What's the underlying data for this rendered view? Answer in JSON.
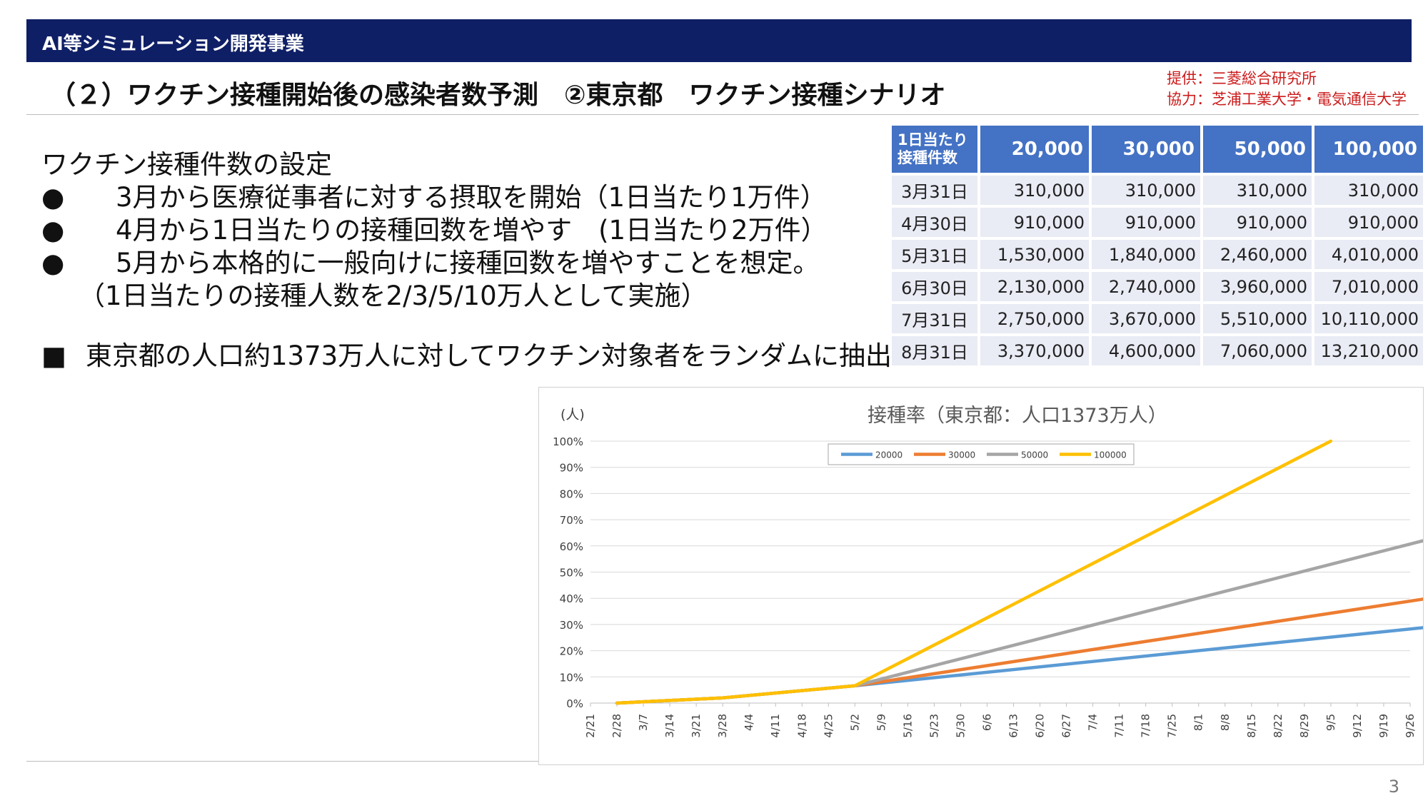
{
  "header": {
    "bar_label": "AI等シミュレーション開発事業"
  },
  "title": "（２）ワクチン接種開始後の感染者数予測　②東京都　ワクチン接種シナリオ",
  "credits": {
    "provider": "提供：三菱総合研究所",
    "cooperation": "協力：芝浦工業大学・電気通信大学"
  },
  "body": {
    "heading": "ワクチン接種件数の設定",
    "bullet_symbol": "●",
    "bullets": [
      "3月から医療従事者に対する摂取を開始（1日当たり1万件）",
      "4月から1日当たりの接種回数を増やす　(1日当たり2万件）",
      "5月から本格的に一般向けに接種回数を増やすことを想定。"
    ],
    "note": "（1日当たりの接種人数を2/3/5/10万人として実施）",
    "square_symbol": "■",
    "square_text": "東京都の人口約1373万人に対してワクチン対象者をランダムに抽出"
  },
  "table": {
    "corner_label": [
      "1日当たり",
      "接種件数"
    ],
    "headers": [
      "20,000",
      "30,000",
      "50,000",
      "100,000"
    ],
    "rows": [
      {
        "date": "3月31日",
        "values": [
          "310,000",
          "310,000",
          "310,000",
          "310,000"
        ]
      },
      {
        "date": "4月30日",
        "values": [
          "910,000",
          "910,000",
          "910,000",
          "910,000"
        ]
      },
      {
        "date": "5月31日",
        "values": [
          "1,530,000",
          "1,840,000",
          "2,460,000",
          "4,010,000"
        ]
      },
      {
        "date": "6月30日",
        "values": [
          "2,130,000",
          "2,740,000",
          "3,960,000",
          "7,010,000"
        ]
      },
      {
        "date": "7月31日",
        "values": [
          "2,750,000",
          "3,670,000",
          "5,510,000",
          "10,110,000"
        ]
      },
      {
        "date": "8月31日",
        "values": [
          "3,370,000",
          "4,600,000",
          "7,060,000",
          "13,210,000"
        ]
      }
    ]
  },
  "chart_data": {
    "type": "line",
    "title": "接種率（東京都：人口1373万人）",
    "ylabel": "(人)",
    "xlabel": "",
    "ylim": [
      0,
      100
    ],
    "grid": true,
    "legend_position": "top-center",
    "x": [
      "2/21",
      "2/28",
      "3/7",
      "3/14",
      "3/21",
      "3/28",
      "4/4",
      "4/11",
      "4/18",
      "4/25",
      "5/2",
      "5/9",
      "5/16",
      "5/23",
      "5/30",
      "6/6",
      "6/13",
      "6/20",
      "6/27",
      "7/4",
      "7/11",
      "7/18",
      "7/25",
      "8/1",
      "8/8",
      "8/15",
      "8/22",
      "8/29",
      "9/5",
      "9/12",
      "9/19",
      "9/26"
    ],
    "yticks": [
      "0%",
      "10%",
      "20%",
      "30%",
      "40%",
      "50%",
      "60%",
      "70%",
      "80%",
      "90%",
      "100%"
    ],
    "series": [
      {
        "name": "20000",
        "color": "#5b9bd5",
        "points": [
          [
            1,
            0
          ],
          [
            5,
            2
          ],
          [
            10,
            6.6
          ],
          [
            31.7,
            29
          ]
        ]
      },
      {
        "name": "30000",
        "color": "#ed7d31",
        "points": [
          [
            1,
            0
          ],
          [
            5,
            2
          ],
          [
            10,
            6.6
          ],
          [
            31.7,
            40
          ]
        ]
      },
      {
        "name": "50000",
        "color": "#a5a5a5",
        "points": [
          [
            1,
            0
          ],
          [
            5,
            2
          ],
          [
            10,
            6.6
          ],
          [
            31.7,
            62.5
          ]
        ]
      },
      {
        "name": "100000",
        "color": "#ffc000",
        "points": [
          [
            1,
            0
          ],
          [
            5,
            2
          ],
          [
            10,
            6.6
          ],
          [
            28,
            100
          ]
        ]
      }
    ]
  },
  "page_number": "3"
}
